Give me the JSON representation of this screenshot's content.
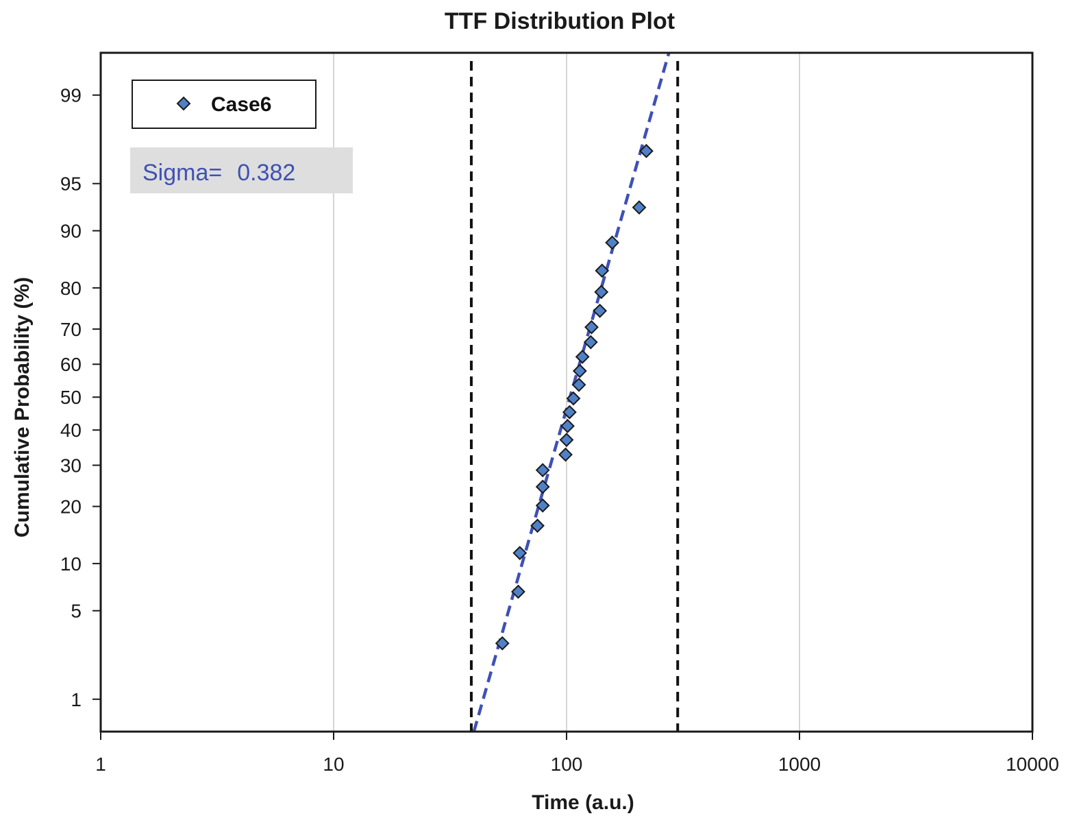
{
  "chart_data": {
    "type": "scatter",
    "title": "TTF Distribution Plot",
    "xlabel": "Time (a.u.)",
    "ylabel": "Cumulative Probability (%)",
    "x_scale": "log",
    "y_scale": "normal-probability",
    "xlim": [
      1,
      10000
    ],
    "ylim": [
      0.5,
      99.6
    ],
    "x_ticks": [
      1,
      10,
      100,
      1000,
      10000
    ],
    "x_tick_labels": [
      "1",
      "10",
      "100",
      "1000",
      "10000"
    ],
    "y_ticks": [
      1,
      5,
      10,
      20,
      30,
      40,
      50,
      60,
      70,
      80,
      90,
      95,
      99
    ],
    "y_tick_labels": [
      "1",
      "5",
      "10",
      "20",
      "30",
      "40",
      "50",
      "60",
      "70",
      "80",
      "90",
      "95",
      "99"
    ],
    "grid": "vertical",
    "legend": {
      "position": "top-left",
      "entries": [
        "Case6"
      ]
    },
    "annotation": {
      "label": "Sigma=",
      "value": "0.382",
      "position": "top-left"
    },
    "series": [
      {
        "name": "Case6",
        "marker": "diamond",
        "points": [
          {
            "x": 53,
            "y": 2.9
          },
          {
            "x": 62,
            "y": 6.7
          },
          {
            "x": 63,
            "y": 11.5
          },
          {
            "x": 75,
            "y": 16.1
          },
          {
            "x": 79,
            "y": 20.2
          },
          {
            "x": 79,
            "y": 24.5
          },
          {
            "x": 79,
            "y": 28.7
          },
          {
            "x": 99,
            "y": 32.9
          },
          {
            "x": 100,
            "y": 37.1
          },
          {
            "x": 101,
            "y": 41.2
          },
          {
            "x": 103,
            "y": 45.4
          },
          {
            "x": 107,
            "y": 49.6
          },
          {
            "x": 113,
            "y": 53.8
          },
          {
            "x": 114,
            "y": 58.0
          },
          {
            "x": 117,
            "y": 62.2
          },
          {
            "x": 127,
            "y": 66.4
          },
          {
            "x": 128,
            "y": 70.5
          },
          {
            "x": 139,
            "y": 74.7
          },
          {
            "x": 141,
            "y": 79.1
          },
          {
            "x": 142,
            "y": 83.5
          },
          {
            "x": 157,
            "y": 88.3
          },
          {
            "x": 205,
            "y": 92.8
          },
          {
            "x": 220,
            "y": 97.1
          }
        ]
      }
    ],
    "fit_line": {
      "style": "dashed",
      "color": "#3f51b5",
      "points": [
        {
          "x": 40,
          "y": 0.5
        },
        {
          "x": 275,
          "y": 99.6
        }
      ]
    },
    "reference_lines": {
      "style": "dashed",
      "color": "#111111",
      "x": [
        39,
        300
      ]
    },
    "colors": {
      "marker_fill": "#4f81c7",
      "marker_edge": "#1a1a1a",
      "fit": "#3f51b5",
      "sigma_text": "#3f51b5",
      "sigma_box": "#dedede",
      "grid": "#c8c8c8"
    }
  }
}
